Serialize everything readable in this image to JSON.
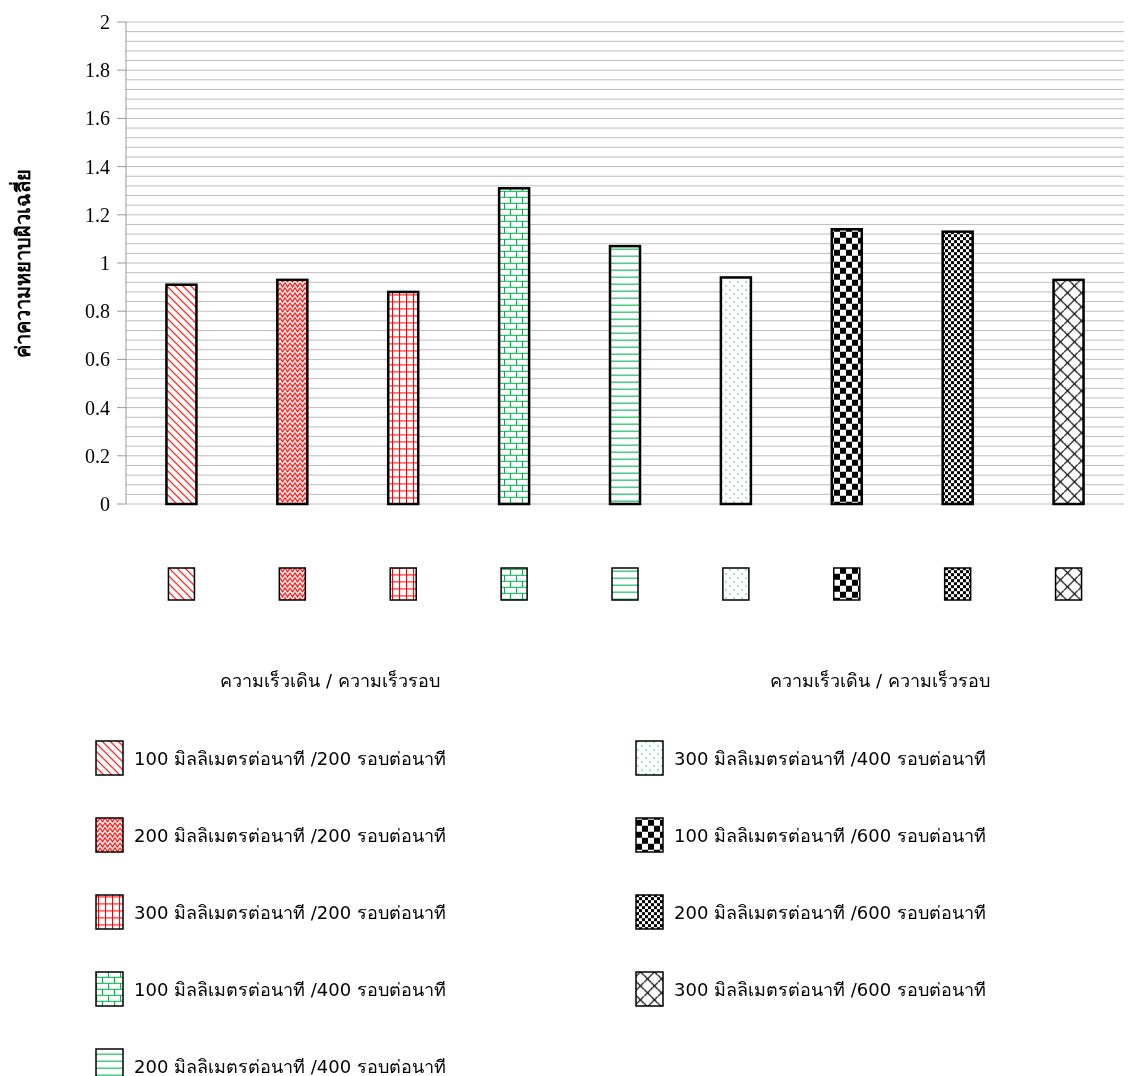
{
  "chart_data": {
    "type": "bar",
    "ylabel": "ค่าความหยาบผิวเฉลี่ย",
    "legend_title": "ความเร็วเดิน   /   ความเร็วรอบ",
    "categories": [
      null,
      null,
      null,
      null,
      null,
      null,
      null,
      null,
      null
    ],
    "series": [
      {
        "name": "100 มิลลิเมตรต่อนาที /200 รอบต่อนาที",
        "color": "#ff0000",
        "values": [
          0.91,
          null,
          null,
          null,
          null,
          null,
          null,
          null,
          null
        ]
      },
      {
        "name": "200 มิลลิเมตรต่อนาที /200 รอบต่อนาที",
        "color": "#ff0000",
        "values": [
          null,
          0.93,
          null,
          null,
          null,
          null,
          null,
          null,
          null
        ]
      },
      {
        "name": "300 มิลลิเมตรต่อนาที /200 รอบต่อนาที",
        "color": "#ff0000",
        "values": [
          null,
          null,
          0.88,
          null,
          null,
          null,
          null,
          null,
          null
        ]
      },
      {
        "name": "100 มิลลิเมตรต่อนาที /400 รอบต่อนาที",
        "color": "#00b050",
        "values": [
          null,
          null,
          null,
          1.31,
          null,
          null,
          null,
          null,
          null
        ]
      },
      {
        "name": "200 มิลลิเมตรต่อนาที /400 รอบต่อนาที",
        "color": "#00b050",
        "values": [
          null,
          null,
          null,
          null,
          1.07,
          null,
          null,
          null,
          null
        ]
      },
      {
        "name": "300 มิลลิเมตรต่อนาที /400 รอบต่อนาที",
        "color": "#00b050",
        "values": [
          null,
          null,
          null,
          null,
          null,
          0.94,
          null,
          null,
          null
        ]
      },
      {
        "name": "100 มิลลิเมตรต่อนาที /600 รอบต่อนาที",
        "color": "#000000",
        "values": [
          null,
          null,
          null,
          null,
          null,
          null,
          1.14,
          null,
          null
        ]
      },
      {
        "name": "200 มิลลิเมตรต่อนาที /600 รอบต่อนาที",
        "color": "#000000",
        "values": [
          null,
          null,
          null,
          null,
          null,
          null,
          null,
          1.13,
          null
        ]
      },
      {
        "name": "300 มิลลิเมตรต่อนาที /600 รอบต่อนาที",
        "color": "#000000",
        "values": [
          null,
          null,
          null,
          null,
          null,
          null,
          null,
          null,
          0.93
        ]
      }
    ],
    "ylim": [
      0,
      2
    ],
    "yticks": [
      0,
      0.2,
      0.4,
      0.6,
      0.8,
      1,
      1.2,
      1.4,
      1.6,
      1.8,
      2
    ],
    "grid": true,
    "legend": "bottom"
  }
}
